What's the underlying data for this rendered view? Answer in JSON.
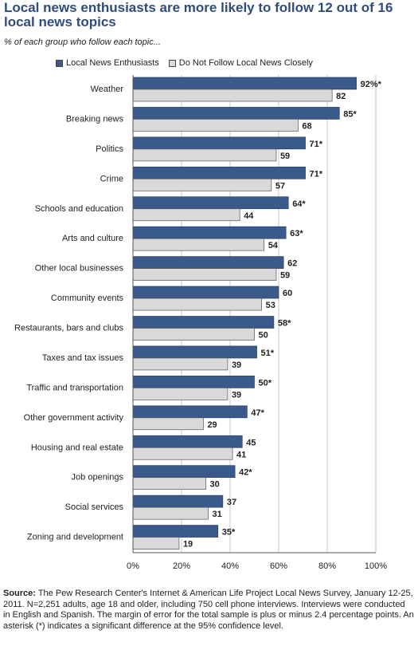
{
  "title": "Local news enthusiasts are more likely to follow 12 out of 16 local news topics",
  "subtitle": "% of each group who follow each topic...",
  "source_label": "Source:",
  "source_text": "The Pew Research Center's Internet & American Life Project Local News Survey, January 12-25, 2011. N=2,251 adults, age 18 and older, including 750 cell phone interviews. Interviews were conducted in English and Spanish. The margin of error for the total sample is plus or minus 2.4 percentage points.  An asterisk (*) indicates a significant difference at the 95% confidence level.",
  "colors": {
    "enthusiasts": "#3b5a8c",
    "not_follow": "#d9d9d9",
    "title": "#2f4c7d"
  },
  "chart_data": {
    "type": "bar",
    "orientation": "horizontal",
    "title": "Local news enthusiasts are more likely to follow 12 out of 16 local news topics",
    "subtitle": "% of each group who follow each topic...",
    "xlim": [
      0,
      100
    ],
    "xticks": [
      "0%",
      "20%",
      "40%",
      "60%",
      "80%",
      "100%"
    ],
    "legend_position": "top",
    "grid": true,
    "categories": [
      "Weather",
      "Breaking news",
      "Politics",
      "Crime",
      "Schools and education",
      "Arts and culture",
      "Other local businesses",
      "Community events",
      "Restaurants, bars and clubs",
      "Taxes and tax issues",
      "Traffic and transportation",
      "Other government activity",
      "Housing and real estate",
      "Job openings",
      "Social services",
      "Zoning and development"
    ],
    "series": [
      {
        "name": "Local News Enthusiasts",
        "values": [
          92,
          85,
          71,
          71,
          64,
          63,
          62,
          60,
          58,
          51,
          50,
          47,
          45,
          42,
          37,
          35
        ],
        "labels": [
          "92%*",
          "85*",
          "71*",
          "71*",
          "64*",
          "63*",
          "62",
          "60",
          "58*",
          "51*",
          "50*",
          "47*",
          "45",
          "42*",
          "37",
          "35*"
        ]
      },
      {
        "name": "Do Not Follow Local News Closely",
        "values": [
          82,
          68,
          59,
          57,
          44,
          54,
          59,
          53,
          50,
          39,
          39,
          29,
          41,
          30,
          31,
          19
        ],
        "labels": [
          "82",
          "68",
          "59",
          "57",
          "44",
          "54",
          "59",
          "53",
          "50",
          "39",
          "39",
          "29",
          "41",
          "30",
          "31",
          "19"
        ]
      }
    ]
  }
}
